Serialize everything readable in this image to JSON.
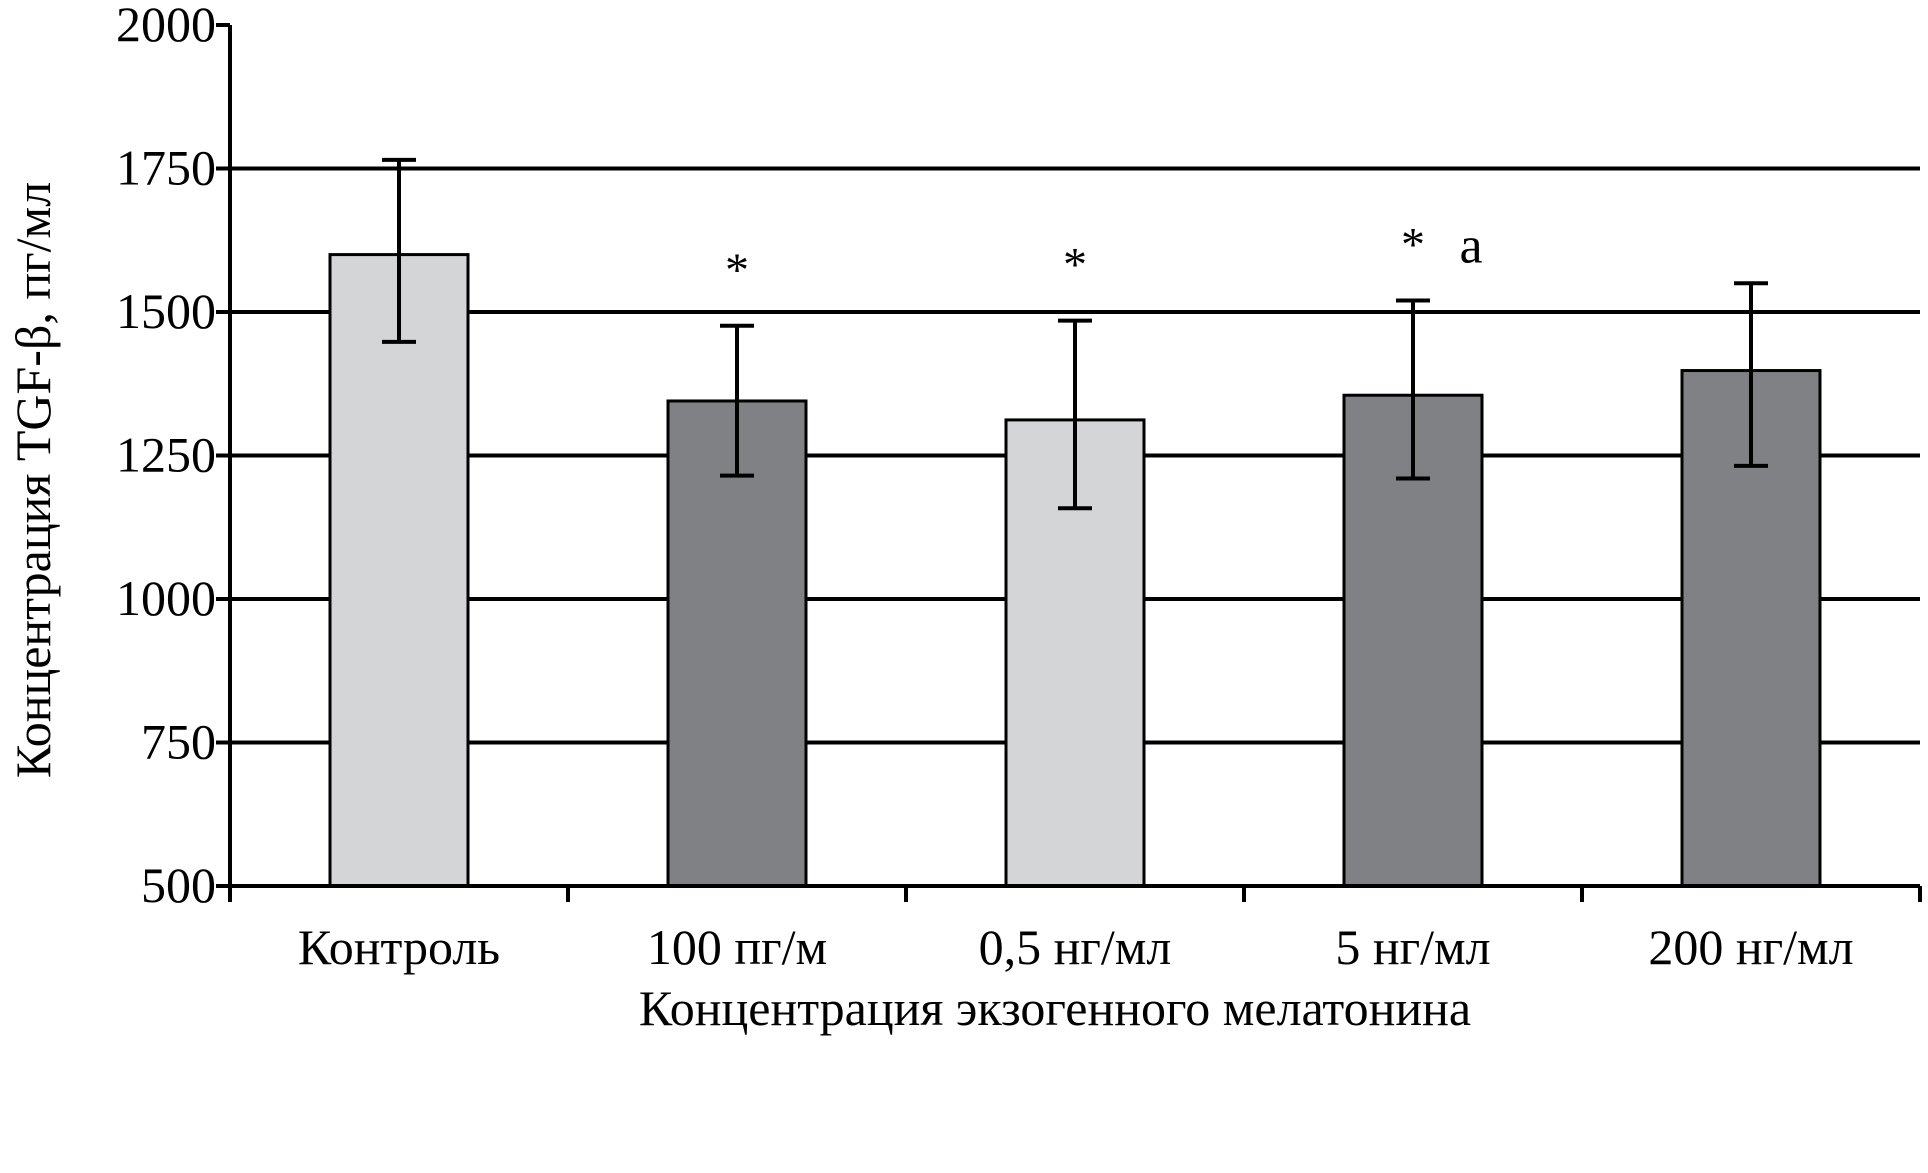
{
  "chart_data": {
    "type": "bar",
    "title": "",
    "xlabel": "Концентрация экзогенного мелатонина",
    "ylabel": "Концентрация TGF-β, пг/мл",
    "ylim": [
      500,
      2000
    ],
    "yticks": [
      "500",
      "750",
      "1000",
      "1250",
      "1500",
      "1750",
      "2000"
    ],
    "grid": "horizontal",
    "categories": [
      "Контроль",
      "100 пг/м",
      "0,5 нг/мл",
      "5 нг/мл",
      "200 нг/мл"
    ],
    "values": [
      1600,
      1345,
      1312,
      1355,
      1398
    ],
    "error_low": [
      1448,
      1215,
      1158,
      1210,
      1232
    ],
    "error_high": [
      1765,
      1476,
      1485,
      1520,
      1550
    ],
    "annotations": [
      "",
      "*",
      "*",
      "*",
      ""
    ],
    "annotations_extra": [
      "",
      "",
      "",
      "a",
      ""
    ],
    "bar_colors": [
      "#d4d5d7",
      "#808184",
      "#d4d5d7",
      "#808184",
      "#808184"
    ]
  }
}
